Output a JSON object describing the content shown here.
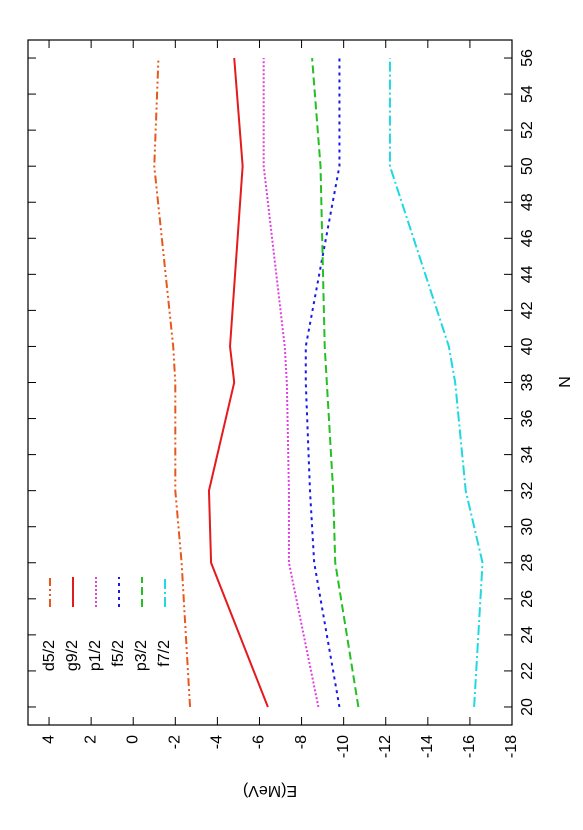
{
  "chart_data": {
    "type": "line",
    "x_label": "N",
    "y_label": "E(MeV)",
    "x": [
      20,
      28,
      32,
      38,
      40,
      50,
      56
    ],
    "xlim": [
      19,
      57
    ],
    "xticks": [
      20,
      22,
      24,
      26,
      28,
      30,
      32,
      34,
      36,
      38,
      40,
      42,
      44,
      46,
      48,
      50,
      52,
      54,
      56
    ],
    "ylim": [
      -18,
      5
    ],
    "yticks": [
      4,
      2,
      0,
      -2,
      -4,
      -6,
      -8,
      -10,
      -12,
      -14,
      -16,
      -18
    ],
    "series": [
      {
        "name": "d5/2",
        "color": "#e8581c",
        "dash": "8 3 2 3 2 3",
        "values": [
          -2.7,
          -2.3,
          -2.0,
          -2.0,
          -1.9,
          -1.0,
          -1.2
        ]
      },
      {
        "name": "g9/2",
        "color": "#e41a1c",
        "dash": "none",
        "values": [
          -6.4,
          -3.7,
          -3.6,
          -4.8,
          -4.6,
          -5.2,
          -4.8
        ]
      },
      {
        "name": "p1/2",
        "color": "#e040e0",
        "dash": "2 2",
        "values": [
          -8.8,
          -7.4,
          -7.4,
          -7.3,
          -7.2,
          -6.2,
          -6.2
        ]
      },
      {
        "name": "f5/2",
        "color": "#1a1ae6",
        "dash": "3 4",
        "values": [
          -9.8,
          -8.6,
          -8.4,
          -8.2,
          -8.2,
          -9.8,
          -9.8
        ]
      },
      {
        "name": "p3/2",
        "color": "#22c022",
        "dash": "8 4",
        "values": [
          -10.7,
          -9.6,
          -9.5,
          -9.2,
          -9.1,
          -8.9,
          -8.5
        ]
      },
      {
        "name": "f7/2",
        "color": "#20d8e0",
        "dash": "10 3 2 3",
        "values": [
          -16.2,
          -16.6,
          -15.8,
          -15.3,
          -15.0,
          -12.2,
          -12.2
        ]
      }
    ]
  }
}
